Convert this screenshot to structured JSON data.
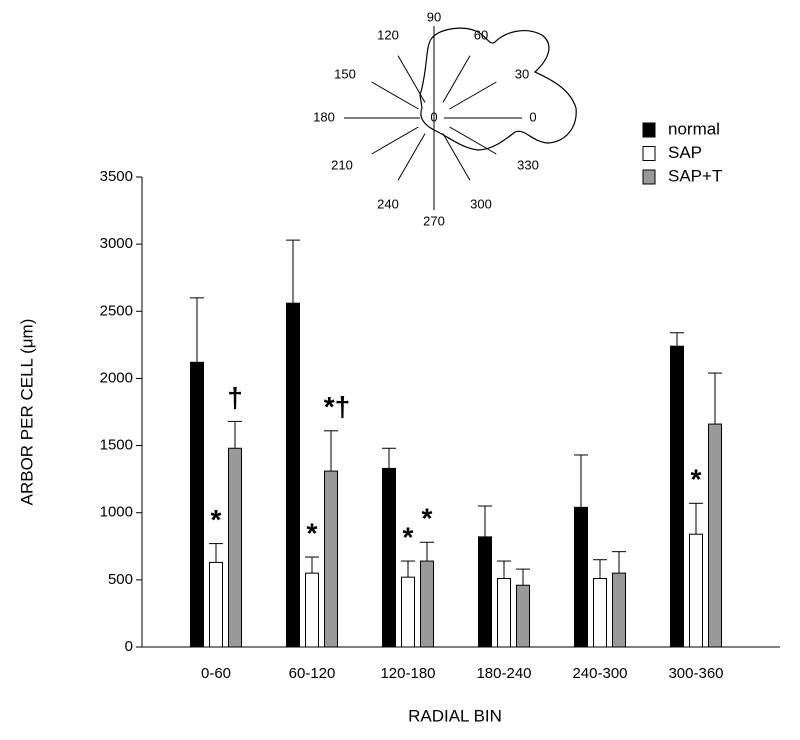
{
  "chart_data": {
    "type": "bar",
    "x_label": "RADIAL BIN",
    "y_label": "ARBOR PER CELL (μm)",
    "categories": [
      "0-60",
      "60-120",
      "120-180",
      "180-240",
      "240-300",
      "300-360"
    ],
    "series": [
      {
        "name": "normal",
        "color": "#000000",
        "values": [
          2120,
          2560,
          1330,
          820,
          1040,
          2240
        ],
        "errors": [
          480,
          470,
          150,
          230,
          390,
          100
        ]
      },
      {
        "name": "SAP",
        "color": "#ffffff",
        "values": [
          630,
          550,
          520,
          510,
          510,
          840
        ],
        "errors": [
          140,
          120,
          120,
          130,
          140,
          230
        ]
      },
      {
        "name": "SAP+T",
        "color": "#999999",
        "values": [
          1480,
          1310,
          640,
          460,
          550,
          1660
        ],
        "errors": [
          200,
          300,
          140,
          120,
          160,
          380
        ]
      }
    ],
    "ylim": [
      0,
      3500
    ],
    "yticks": [
      0,
      500,
      1000,
      1500,
      2000,
      2500,
      3000,
      3500
    ],
    "grid": false,
    "annotations": [
      {
        "text": "*",
        "category": 0,
        "series": 1
      },
      {
        "text": "†",
        "category": 0,
        "series": 2
      },
      {
        "text": "*",
        "category": 1,
        "series": 1
      },
      {
        "text": "*†",
        "category": 1,
        "series": 2
      },
      {
        "text": "*",
        "category": 2,
        "series": 1
      },
      {
        "text": "*",
        "category": 2,
        "series": 2
      },
      {
        "text": "*",
        "category": 5,
        "series": 1
      }
    ]
  },
  "inset": {
    "labels": [
      "90",
      "60",
      "120",
      "30",
      "150",
      "180",
      "0",
      "0",
      "210",
      "330",
      "240",
      "300",
      "270"
    ]
  }
}
